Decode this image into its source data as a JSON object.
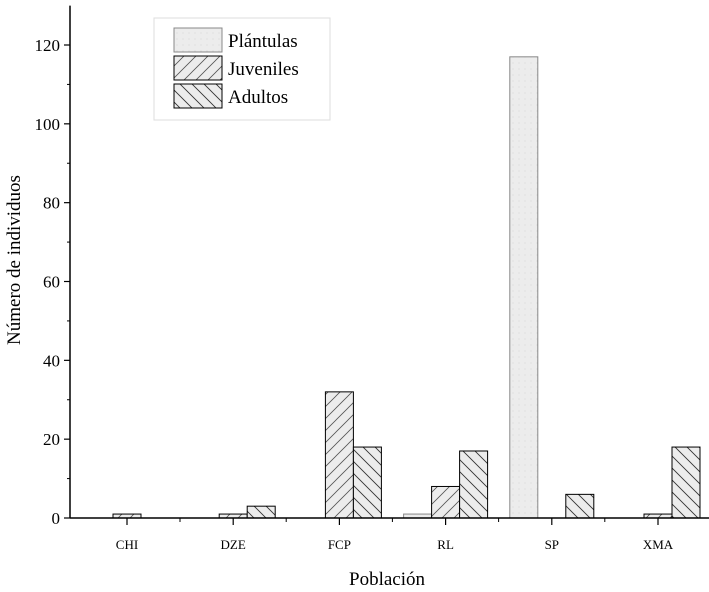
{
  "chart_data": {
    "type": "bar",
    "title": "",
    "xlabel": "Población",
    "ylabel": "Número de individuos",
    "categories": [
      "CHI",
      "DZE",
      "FCP",
      "RL",
      "SP",
      "XMA"
    ],
    "series": [
      {
        "name": "Plántulas",
        "pattern": "dots",
        "values": [
          0,
          0,
          0,
          1,
          117,
          0
        ]
      },
      {
        "name": "Juveniles",
        "pattern": "forward-hatch",
        "values": [
          1,
          1,
          32,
          8,
          0,
          1
        ]
      },
      {
        "name": "Adultos",
        "pattern": "back-hatch",
        "values": [
          0,
          3,
          18,
          17,
          6,
          18
        ]
      }
    ],
    "ylim": [
      0,
      130
    ],
    "yticks": [
      0,
      20,
      40,
      60,
      80,
      100,
      120
    ],
    "legend": "top-left",
    "grid": false,
    "bar_fill": "#e8e8e8"
  }
}
